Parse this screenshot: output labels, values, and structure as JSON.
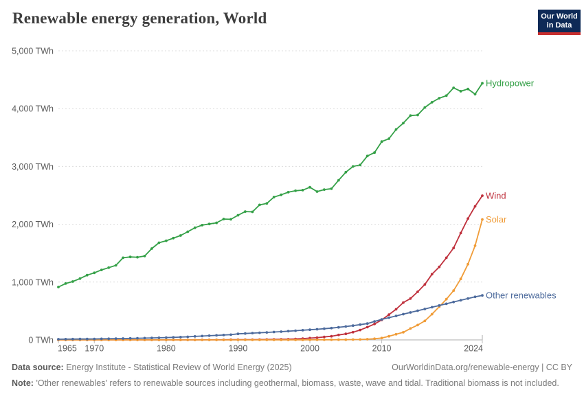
{
  "chart": {
    "title": "Renewable energy generation, World"
  },
  "logo": {
    "line1": "Our World",
    "line2": "in Data",
    "bg_color": "#0e2a57",
    "bar_color": "#c72f2f"
  },
  "footer": {
    "data_source_label": "Data source:",
    "data_source_value": "Energy Institute - Statistical Review of World Energy (2025)",
    "attribution": "OurWorldinData.org/renewable-energy | CC BY",
    "note_label": "Note:",
    "note_text": "'Other renewables' refers to renewable sources including geothermal, biomass, waste, wave and tidal. Traditional biomass is not included."
  },
  "chart_data": {
    "type": "line",
    "title": "Renewable energy generation, World",
    "unit": "TWh",
    "xlim": [
      1965,
      2024
    ],
    "ylim": [
      0,
      5000
    ],
    "x_ticks": [
      1965,
      1970,
      1980,
      1990,
      2000,
      2010,
      2024
    ],
    "y_ticks": [
      0,
      1000,
      2000,
      3000,
      4000,
      5000
    ],
    "grid": "dashed-horizontal",
    "legend": "end-of-line-labels",
    "x": [
      1965,
      1966,
      1967,
      1968,
      1969,
      1970,
      1971,
      1972,
      1973,
      1974,
      1975,
      1976,
      1977,
      1978,
      1979,
      1980,
      1981,
      1982,
      1983,
      1984,
      1985,
      1986,
      1987,
      1988,
      1989,
      1990,
      1991,
      1992,
      1993,
      1994,
      1995,
      1996,
      1997,
      1998,
      1999,
      2000,
      2001,
      2002,
      2003,
      2004,
      2005,
      2006,
      2007,
      2008,
      2009,
      2010,
      2011,
      2012,
      2013,
      2014,
      2015,
      2016,
      2017,
      2018,
      2019,
      2020,
      2021,
      2022,
      2023,
      2024
    ],
    "series": [
      {
        "name": "Hydropower",
        "color": "#34a047",
        "values": [
          915,
          975,
          1010,
          1060,
          1120,
          1160,
          1210,
          1250,
          1290,
          1420,
          1435,
          1430,
          1450,
          1580,
          1680,
          1715,
          1760,
          1805,
          1870,
          1940,
          1985,
          2005,
          2025,
          2090,
          2085,
          2155,
          2220,
          2215,
          2335,
          2360,
          2470,
          2510,
          2555,
          2580,
          2590,
          2640,
          2565,
          2600,
          2615,
          2760,
          2900,
          3000,
          3025,
          3180,
          3240,
          3430,
          3480,
          3640,
          3750,
          3880,
          3890,
          4020,
          4110,
          4180,
          4225,
          4360,
          4300,
          4340,
          4250,
          4440
        ]
      },
      {
        "name": "Wind",
        "color": "#bf303c",
        "values": [
          0,
          0,
          0,
          0,
          0,
          0,
          0,
          0,
          0,
          0,
          0,
          0,
          0,
          0,
          0,
          0,
          0,
          0,
          0,
          0.1,
          0.6,
          1,
          1.7,
          2.3,
          3.1,
          3.9,
          4.6,
          5.2,
          5.9,
          7.1,
          8.3,
          9.4,
          12,
          16,
          21,
          31,
          38,
          52,
          63,
          85,
          104,
          133,
          171,
          221,
          276,
          346,
          437,
          530,
          646,
          715,
          831,
          959,
          1136,
          1263,
          1420,
          1590,
          1848,
          2098,
          2310,
          2494
        ]
      },
      {
        "name": "Solar",
        "color": "#f09c38",
        "values": [
          0,
          0,
          0,
          0,
          0,
          0,
          0,
          0,
          0,
          0,
          0,
          0,
          0,
          0,
          0,
          0,
          0,
          0,
          0,
          0,
          0,
          0,
          0,
          0,
          0,
          0,
          0,
          0,
          0,
          0,
          0,
          0,
          0,
          0,
          0,
          1,
          1.5,
          2,
          2.5,
          3,
          4,
          5.5,
          7.5,
          12,
          20,
          32,
          63,
          97,
          132,
          197,
          256,
          328,
          445,
          574,
          704,
          853,
          1055,
          1310,
          1629,
          2083
        ]
      },
      {
        "name": "Other renewables",
        "color": "#4c6a9c",
        "values": [
          12,
          13,
          14,
          15,
          16,
          17,
          19,
          20,
          22,
          24,
          26,
          28,
          31,
          34,
          37,
          40,
          44,
          49,
          54,
          60,
          66,
          72,
          78,
          84,
          90,
          105,
          111,
          117,
          123,
          129,
          136,
          143,
          151,
          159,
          167,
          176,
          184,
          194,
          204,
          217,
          231,
          247,
          264,
          283,
          320,
          355,
          385,
          415,
          445,
          475,
          505,
          535,
          565,
          595,
          625,
          655,
          685,
          715,
          745,
          770
        ]
      }
    ]
  }
}
